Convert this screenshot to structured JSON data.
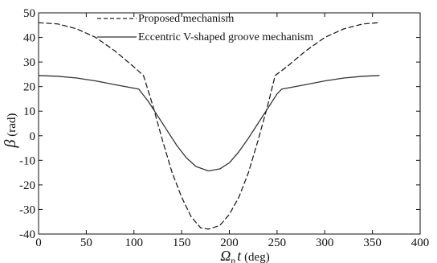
{
  "chart_data": {
    "type": "line",
    "title": "",
    "xlabel": {
      "symbol": "Ω",
      "subscript": "n",
      "var": "t",
      "unit": " (deg)"
    },
    "ylabel": {
      "symbol": "β",
      "unit": " (rad)"
    },
    "xlim": [
      0,
      400
    ],
    "ylim": [
      -40,
      50
    ],
    "xticks": [
      0,
      50,
      100,
      150,
      200,
      250,
      300,
      350,
      400
    ],
    "yticks": [
      50,
      40,
      30,
      20,
      10,
      0,
      -10,
      -20,
      -30,
      -40
    ],
    "grid": false,
    "legend_position": "top-center",
    "series": [
      {
        "name": "Proposed mechanism",
        "style": "dashed",
        "color": "#222222",
        "points": [
          [
            0,
            46
          ],
          [
            20,
            45.5
          ],
          [
            40,
            43.5
          ],
          [
            60,
            40
          ],
          [
            80,
            34.5
          ],
          [
            100,
            28
          ],
          [
            110,
            24.5
          ],
          [
            120,
            12
          ],
          [
            130,
            -2
          ],
          [
            140,
            -15
          ],
          [
            150,
            -25
          ],
          [
            160,
            -33
          ],
          [
            170,
            -37.5
          ],
          [
            178,
            -38
          ],
          [
            190,
            -36.5
          ],
          [
            200,
            -32
          ],
          [
            210,
            -25
          ],
          [
            220,
            -15
          ],
          [
            230,
            -2
          ],
          [
            240,
            12
          ],
          [
            248,
            24.5
          ],
          [
            260,
            28
          ],
          [
            280,
            34.5
          ],
          [
            300,
            40
          ],
          [
            320,
            43.5
          ],
          [
            340,
            45.5
          ],
          [
            356,
            46
          ]
        ]
      },
      {
        "name": "Eccentric V-shaped groove mechanism",
        "style": "solid",
        "color": "#333333",
        "points": [
          [
            0,
            24.5
          ],
          [
            20,
            24.2
          ],
          [
            40,
            23.5
          ],
          [
            60,
            22.3
          ],
          [
            80,
            20.8
          ],
          [
            105,
            19
          ],
          [
            115,
            14
          ],
          [
            125,
            8
          ],
          [
            135,
            2
          ],
          [
            145,
            -4
          ],
          [
            155,
            -9
          ],
          [
            165,
            -12.5
          ],
          [
            178,
            -14.3
          ],
          [
            190,
            -13.5
          ],
          [
            200,
            -11
          ],
          [
            210,
            -6.5
          ],
          [
            220,
            -1
          ],
          [
            230,
            5
          ],
          [
            240,
            11
          ],
          [
            250,
            17
          ],
          [
            255,
            19
          ],
          [
            280,
            20.8
          ],
          [
            300,
            22.3
          ],
          [
            320,
            23.5
          ],
          [
            340,
            24.2
          ],
          [
            357,
            24.5
          ]
        ]
      }
    ]
  }
}
